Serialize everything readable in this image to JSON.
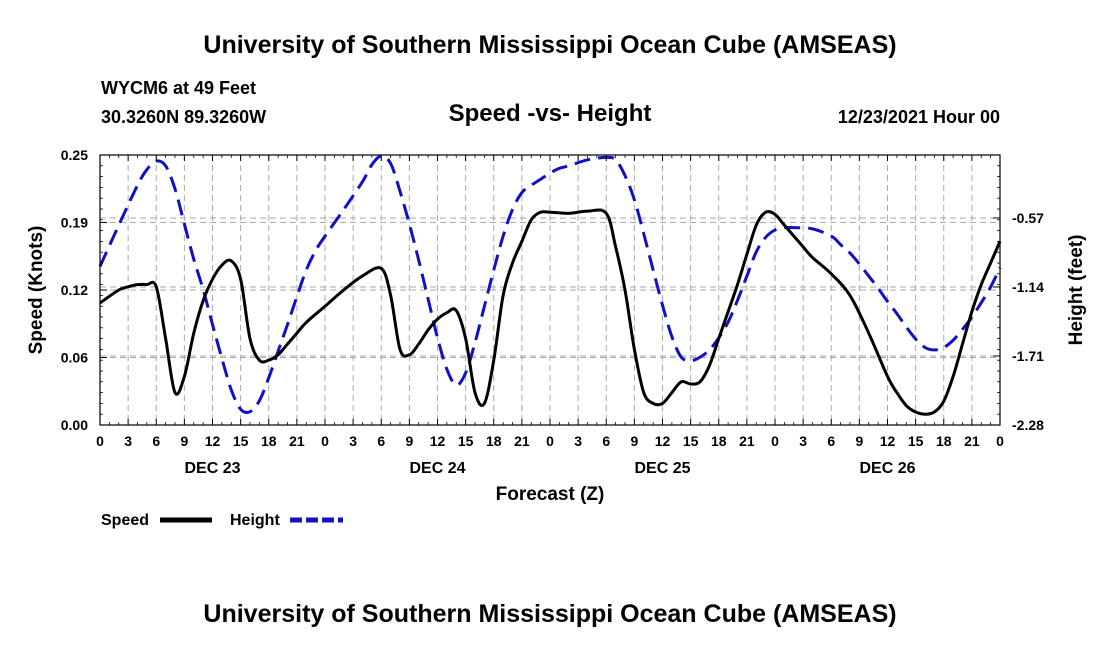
{
  "page": {
    "title_top": "University of Southern Mississippi Ocean Cube (AMSEAS)",
    "title_bottom": "University of Southern Mississippi Ocean Cube (AMSEAS)",
    "station": "WYCM6 at 49 Feet",
    "coords": "30.3260N  89.3260W",
    "date": "12/23/2021 Hour 00"
  },
  "colors": {
    "speed": "#000000",
    "height": "#1010c8",
    "grid": "#aaaaaa"
  },
  "chart_data": {
    "type": "line",
    "title": "Speed -vs- Height",
    "xlabel": "Forecast (Z)",
    "ylabel": "Speed (Knots)",
    "y2label": "Height (feet)",
    "xlim": [
      0,
      96
    ],
    "ylim": [
      0,
      0.25
    ],
    "y2lim": [
      -2.28,
      -0.05
    ],
    "yticks": [
      "0.00",
      "0.06",
      "0.12",
      "0.19",
      "0.25"
    ],
    "yticks_values": [
      0,
      0.0625,
      0.125,
      0.1875,
      0.25
    ],
    "y2ticks": [
      "-0.57",
      "-1.14",
      "-1.71",
      "-2.28"
    ],
    "y2ticks_values": [
      -0.57,
      -1.14,
      -1.71,
      -2.28
    ],
    "xtick_labels": [
      "0",
      "3",
      "6",
      "9",
      "12",
      "15",
      "18",
      "21",
      "0",
      "3",
      "6",
      "9",
      "12",
      "15",
      "18",
      "21",
      "0",
      "3",
      "6",
      "9",
      "12",
      "15",
      "18",
      "21",
      "0",
      "3",
      "6",
      "9",
      "12",
      "15",
      "18",
      "21",
      "0"
    ],
    "day_labels": [
      {
        "label": "DEC 23",
        "at": 12
      },
      {
        "label": "DEC 24",
        "at": 36
      },
      {
        "label": "DEC 25",
        "at": 60
      },
      {
        "label": "DEC 26",
        "at": 84
      }
    ],
    "series": [
      {
        "name": "Speed",
        "axis": "left",
        "style": "solid",
        "x": [
          0,
          2,
          3,
          4,
          5,
          6,
          7,
          8,
          9,
          10,
          11,
          12,
          13,
          14,
          15,
          16,
          17,
          18,
          19,
          20,
          21,
          22,
          24,
          26,
          28,
          30,
          31,
          32,
          33,
          34,
          35,
          36,
          37,
          38,
          39,
          40,
          41,
          42,
          43,
          44,
          45,
          46,
          47,
          48,
          50,
          52,
          54,
          55,
          56,
          57,
          58,
          59,
          60,
          61,
          62,
          63,
          64,
          65,
          66,
          67,
          68,
          69,
          70,
          71,
          72,
          73,
          74,
          75,
          76,
          78,
          80,
          82,
          84,
          85,
          86,
          87,
          88,
          89,
          90,
          91,
          92,
          93,
          94,
          95,
          96
        ],
        "values": [
          0.113,
          0.125,
          0.128,
          0.13,
          0.13,
          0.128,
          0.08,
          0.03,
          0.045,
          0.085,
          0.115,
          0.135,
          0.148,
          0.152,
          0.135,
          0.08,
          0.06,
          0.06,
          0.065,
          0.075,
          0.085,
          0.095,
          0.11,
          0.125,
          0.138,
          0.145,
          0.12,
          0.07,
          0.065,
          0.075,
          0.088,
          0.098,
          0.104,
          0.106,
          0.08,
          0.03,
          0.02,
          0.06,
          0.12,
          0.15,
          0.17,
          0.19,
          0.197,
          0.197,
          0.196,
          0.198,
          0.196,
          0.165,
          0.125,
          0.07,
          0.03,
          0.02,
          0.02,
          0.03,
          0.04,
          0.038,
          0.04,
          0.055,
          0.08,
          0.105,
          0.13,
          0.158,
          0.185,
          0.197,
          0.195,
          0.185,
          0.175,
          0.165,
          0.155,
          0.14,
          0.12,
          0.085,
          0.045,
          0.03,
          0.018,
          0.012,
          0.01,
          0.012,
          0.022,
          0.045,
          0.075,
          0.105,
          0.13,
          0.15,
          0.17
        ]
      },
      {
        "name": "Height",
        "axis": "right",
        "style": "dashed",
        "x": [
          0,
          2,
          4,
          5,
          6,
          7,
          8,
          9,
          10,
          11,
          12,
          13,
          14,
          15,
          16,
          17,
          18,
          19,
          20,
          21,
          22,
          23,
          24,
          26,
          28,
          29,
          30,
          31,
          32,
          33,
          34,
          35,
          36,
          37,
          38,
          39,
          40,
          41,
          42,
          43,
          44,
          45,
          46,
          47,
          48,
          49,
          50,
          52,
          54,
          55,
          56,
          57,
          58,
          59,
          60,
          61,
          62,
          63,
          64,
          65,
          66,
          67,
          68,
          69,
          70,
          71,
          72,
          73,
          74,
          76,
          78,
          79,
          80,
          81,
          82,
          83,
          84,
          85,
          86,
          87,
          88,
          89,
          90,
          91,
          92,
          93,
          94,
          95,
          96
        ],
        "values": [
          -0.97,
          -0.63,
          -0.3,
          -0.17,
          -0.1,
          -0.14,
          -0.33,
          -0.62,
          -0.91,
          -1.16,
          -1.45,
          -1.73,
          -1.99,
          -2.15,
          -2.17,
          -2.08,
          -1.89,
          -1.67,
          -1.45,
          -1.22,
          -1.0,
          -0.84,
          -0.72,
          -0.5,
          -0.27,
          -0.13,
          -0.05,
          -0.12,
          -0.35,
          -0.62,
          -0.92,
          -1.24,
          -1.56,
          -1.82,
          -1.95,
          -1.85,
          -1.6,
          -1.3,
          -1.0,
          -0.72,
          -0.5,
          -0.36,
          -0.3,
          -0.25,
          -0.2,
          -0.16,
          -0.14,
          -0.09,
          -0.07,
          -0.09,
          -0.22,
          -0.42,
          -0.7,
          -1.0,
          -1.29,
          -1.55,
          -1.72,
          -1.75,
          -1.72,
          -1.66,
          -1.56,
          -1.43,
          -1.25,
          -1.05,
          -0.85,
          -0.73,
          -0.67,
          -0.65,
          -0.65,
          -0.66,
          -0.72,
          -0.79,
          -0.86,
          -0.95,
          -1.05,
          -1.15,
          -1.26,
          -1.36,
          -1.47,
          -1.57,
          -1.64,
          -1.66,
          -1.64,
          -1.58,
          -1.49,
          -1.39,
          -1.27,
          -1.14,
          -0.98
        ]
      }
    ]
  },
  "legend": [
    {
      "label": "Speed",
      "series": "Speed"
    },
    {
      "label": "Height",
      "series": "Height"
    }
  ]
}
